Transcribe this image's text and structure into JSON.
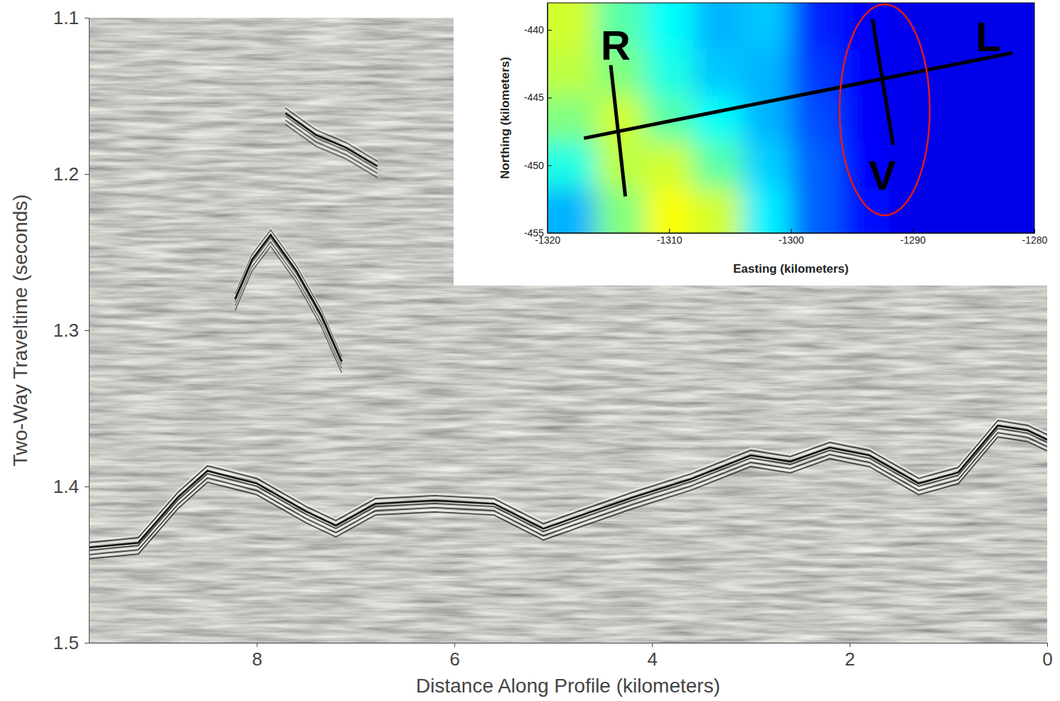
{
  "chart_data": [
    {
      "type": "line",
      "x_label": "Distance Along Profile (kilometers)",
      "y_label": "Two-Way Traveltime (seconds)",
      "xlim": [
        9.7,
        0
      ],
      "xticks": [
        8,
        6,
        4,
        2,
        0
      ],
      "ylim": [
        1.5,
        1.1
      ],
      "yticks": [
        1.1,
        1.2,
        1.3,
        1.4,
        1.5
      ],
      "series": [
        {
          "color": "#111111",
          "x": [
            9.7,
            9.2,
            8.8,
            8.5,
            8.0,
            7.5,
            7.2,
            6.8,
            6.2,
            5.6,
            5.1,
            4.7,
            4.2,
            3.6,
            3.0,
            2.6,
            2.2,
            1.8,
            1.3,
            0.9,
            0.5,
            0.2,
            0
          ],
          "values": [
            1.439,
            1.436,
            1.407,
            1.39,
            1.398,
            1.416,
            1.425,
            1.411,
            1.409,
            1.411,
            1.427,
            1.418,
            1.407,
            1.395,
            1.38,
            1.384,
            1.375,
            1.38,
            1.398,
            1.391,
            1.361,
            1.364,
            1.37
          ]
        },
        {
          "color": "#111111",
          "x": [
            7.71,
            7.4,
            7.1,
            6.78,
            null,
            8.22,
            8.05,
            7.86,
            7.6,
            7.35,
            7.14
          ],
          "values": [
            1.161,
            1.175,
            1.183,
            1.195,
            null,
            1.28,
            1.255,
            1.239,
            1.262,
            1.29,
            1.32
          ]
        }
      ]
    },
    {
      "type": "map",
      "x_label": "Easting (kilometers)",
      "y_label": "Northing (kilometers)",
      "xlim": [
        -1320,
        -1280
      ],
      "xticks": [
        -1320,
        -1310,
        -1300,
        -1290,
        -1280
      ],
      "ylim": [
        -455,
        -438
      ],
      "yticks": [
        -455,
        -450,
        -445,
        -440
      ],
      "heatmap": {
        "x": [
          -1318,
          -1314,
          -1310,
          -1306,
          -1302,
          -1298,
          -1294,
          -1290,
          -1286,
          -1282
        ],
        "y": [
          -453.3,
          -449.9,
          -446.5,
          -443.1,
          -439.7
        ],
        "z": [
          [
            0.3,
            0.5,
            0.62,
            0.58,
            0.36,
            0.22,
            0.14,
            0.1,
            0.1,
            0.1
          ],
          [
            0.4,
            0.56,
            0.58,
            0.46,
            0.33,
            0.22,
            0.13,
            0.1,
            0.1,
            0.1
          ],
          [
            0.5,
            0.58,
            0.46,
            0.38,
            0.3,
            0.2,
            0.12,
            0.1,
            0.1,
            0.1
          ],
          [
            0.56,
            0.5,
            0.4,
            0.32,
            0.3,
            0.18,
            0.12,
            0.1,
            0.1,
            0.1
          ],
          [
            0.58,
            0.46,
            0.38,
            0.3,
            0.32,
            0.16,
            0.12,
            0.1,
            0.1,
            0.1
          ]
        ],
        "zlim": [
          0,
          1
        ]
      },
      "series": [
        {
          "color": "#000000",
          "x": [
            -1314.8,
            -1313.6
          ],
          "values": [
            -442.6,
            -452.3
          ]
        },
        {
          "color": "#000000",
          "x": [
            -1317,
            -1281.8
          ],
          "values": [
            -448.0,
            -441.7
          ]
        },
        {
          "color": "#000000",
          "x": [
            -1293.3,
            -1291.6
          ],
          "values": [
            -439.2,
            -448.5
          ]
        }
      ],
      "annotations": [
        {
          "text": "R",
          "x": -1314.4,
          "y": -441.1
        },
        {
          "text": "L",
          "x": -1283.8,
          "y": -440.5
        },
        {
          "text": "V",
          "x": -1292.5,
          "y": -450.7
        }
      ],
      "ellipse": {
        "x": -1292.3,
        "y": -445.9,
        "rx": 3.7,
        "ry": 7.8,
        "color": "#e01a1a"
      }
    }
  ]
}
